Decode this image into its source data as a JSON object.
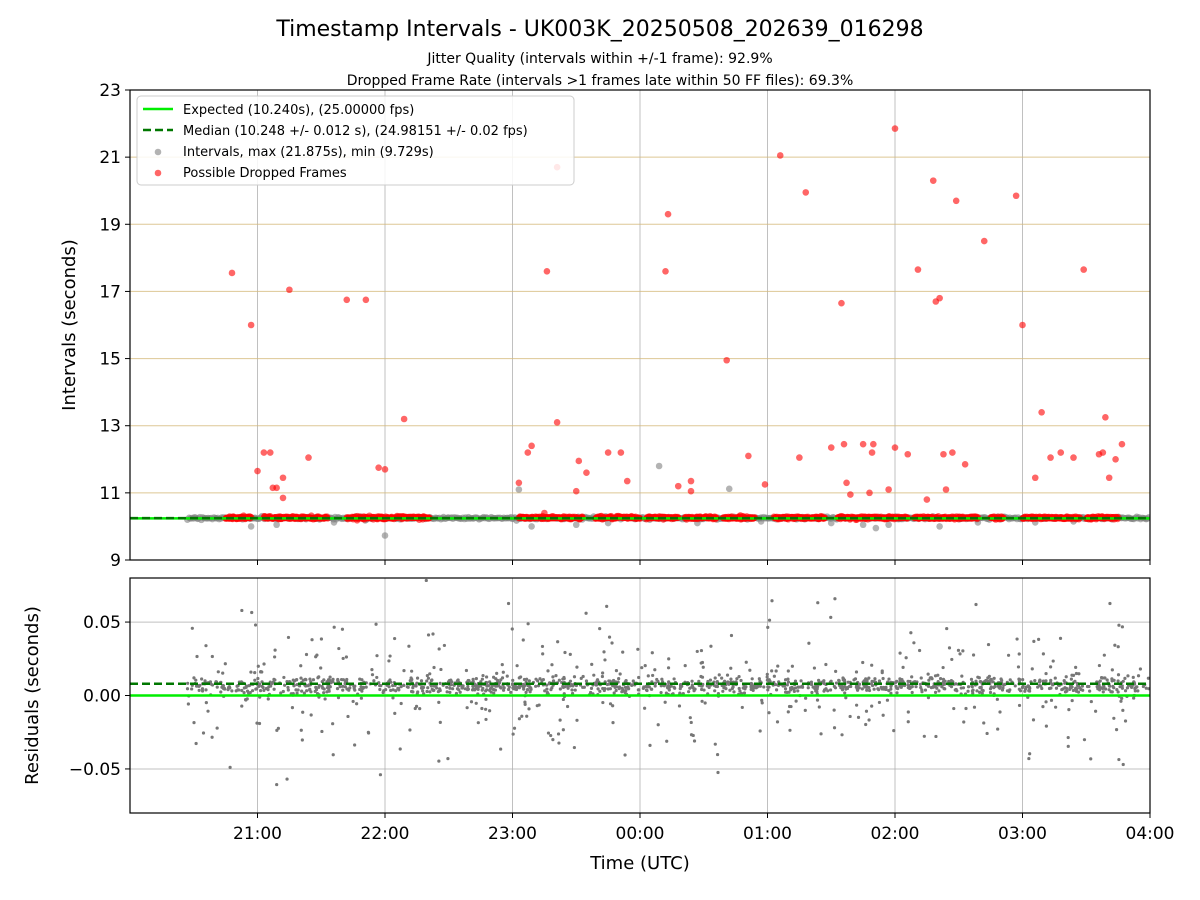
{
  "figure": {
    "title": "Timestamp Intervals - UK003K_20250508_202639_016298",
    "subtitle_1": "Jitter Quality (intervals within +/-1 frame): 92.9%",
    "subtitle_2": "Dropped Frame Rate (intervals >1 frames late within 50 FF files): 69.3%"
  },
  "chart_data": [
    {
      "type": "scatter",
      "panel": "intervals",
      "ylabel": "Intervals (seconds)",
      "xlabel": "",
      "x_unit": "hours since 20:00 UTC on the plot's time axis",
      "xlim": [
        20.0,
        28.0
      ],
      "ylim": [
        9,
        23
      ],
      "yticks": [
        9,
        11,
        13,
        15,
        17,
        19,
        21,
        23
      ],
      "ytick_labels": [
        "9",
        "11",
        "13",
        "15",
        "17",
        "19",
        "21",
        "23"
      ],
      "xticks": [
        21,
        22,
        23,
        24,
        25,
        26,
        27,
        28
      ],
      "xtick_labels": [
        "21:00",
        "22:00",
        "23:00",
        "00:00",
        "01:00",
        "02:00",
        "03:00",
        "04:00"
      ],
      "grid": "vertical grey at ticks, horizontal goldenrod at odd integers",
      "legend_position": "top-left",
      "lines": [
        {
          "name": "Expected (10.240s), (25.00000 fps)",
          "y": 10.24,
          "color": "#00ee00",
          "style": "solid"
        },
        {
          "name": "Median (10.248 +/- 0.012 s), (24.98151 +/- 0.02 fps)",
          "y": 10.248,
          "color": "#007700",
          "style": "dashed"
        }
      ],
      "series": [
        {
          "name": "Intervals, max (21.875s), min (9.729s)",
          "color": "#808080",
          "band": {
            "x_start": 20.45,
            "x_end": 28.0,
            "y": 10.25
          },
          "points": [
            [
              20.8,
              10.28
            ],
            [
              20.95,
              10.0
            ],
            [
              21.15,
              10.05
            ],
            [
              21.6,
              10.12
            ],
            [
              22.0,
              9.73
            ],
            [
              23.05,
              11.1
            ],
            [
              23.15,
              10.0
            ],
            [
              23.5,
              10.05
            ],
            [
              23.75,
              10.1
            ],
            [
              24.15,
              11.8
            ],
            [
              24.45,
              10.1
            ],
            [
              24.7,
              11.12
            ],
            [
              24.95,
              10.15
            ],
            [
              25.5,
              10.1
            ],
            [
              25.75,
              10.05
            ],
            [
              25.85,
              9.95
            ],
            [
              25.95,
              10.05
            ],
            [
              26.35,
              10.0
            ],
            [
              26.65,
              10.12
            ],
            [
              27.1,
              10.12
            ],
            [
              27.4,
              10.15
            ]
          ]
        },
        {
          "name": "Possible Dropped Frames",
          "color": "#ff0000",
          "segments": [
            [
              20.75,
              20.95
            ],
            [
              21.05,
              21.55
            ],
            [
              21.7,
              22.35
            ],
            [
              23.05,
              23.55
            ],
            [
              23.65,
              24.0
            ],
            [
              24.05,
              24.3
            ],
            [
              24.35,
              24.6
            ],
            [
              24.65,
              24.9
            ],
            [
              25.05,
              25.45
            ],
            [
              25.55,
              26.1
            ],
            [
              26.15,
              26.65
            ],
            [
              26.75,
              26.85
            ],
            [
              27.0,
              27.45
            ],
            [
              27.5,
              27.75
            ]
          ],
          "points": [
            [
              20.8,
              17.55
            ],
            [
              20.95,
              16.0
            ],
            [
              21.0,
              11.65
            ],
            [
              21.05,
              12.2
            ],
            [
              21.1,
              12.2
            ],
            [
              21.12,
              11.15
            ],
            [
              21.15,
              11.15
            ],
            [
              21.2,
              11.45
            ],
            [
              21.2,
              10.85
            ],
            [
              21.25,
              17.05
            ],
            [
              21.4,
              12.05
            ],
            [
              21.7,
              16.75
            ],
            [
              21.85,
              16.75
            ],
            [
              21.95,
              11.75
            ],
            [
              22.0,
              11.7
            ],
            [
              22.15,
              13.2
            ],
            [
              23.05,
              11.3
            ],
            [
              23.12,
              12.2
            ],
            [
              23.15,
              12.4
            ],
            [
              23.25,
              10.4
            ],
            [
              23.27,
              17.6
            ],
            [
              23.35,
              13.1
            ],
            [
              23.5,
              11.05
            ],
            [
              23.52,
              11.95
            ],
            [
              23.58,
              11.6
            ],
            [
              23.35,
              20.7
            ],
            [
              23.75,
              12.2
            ],
            [
              23.85,
              12.2
            ],
            [
              23.9,
              11.35
            ],
            [
              24.2,
              17.6
            ],
            [
              24.22,
              19.3
            ],
            [
              24.3,
              11.2
            ],
            [
              24.4,
              11.35
            ],
            [
              24.4,
              11.05
            ],
            [
              24.68,
              14.95
            ],
            [
              24.85,
              12.1
            ],
            [
              24.98,
              11.25
            ],
            [
              25.1,
              21.05
            ],
            [
              25.25,
              12.05
            ],
            [
              25.3,
              19.95
            ],
            [
              25.5,
              12.35
            ],
            [
              25.58,
              16.65
            ],
            [
              25.6,
              12.45
            ],
            [
              25.62,
              11.3
            ],
            [
              25.65,
              10.95
            ],
            [
              25.75,
              12.45
            ],
            [
              25.8,
              11.0
            ],
            [
              25.82,
              12.2
            ],
            [
              25.83,
              12.45
            ],
            [
              25.95,
              11.1
            ],
            [
              26.0,
              21.85
            ],
            [
              26.0,
              12.35
            ],
            [
              26.1,
              12.15
            ],
            [
              26.18,
              17.65
            ],
            [
              26.25,
              10.8
            ],
            [
              26.3,
              20.3
            ],
            [
              26.32,
              16.7
            ],
            [
              26.35,
              16.8
            ],
            [
              26.38,
              12.15
            ],
            [
              26.4,
              11.1
            ],
            [
              26.45,
              12.2
            ],
            [
              26.48,
              19.7
            ],
            [
              26.55,
              11.85
            ],
            [
              26.7,
              18.5
            ],
            [
              26.95,
              19.85
            ],
            [
              27.0,
              16.0
            ],
            [
              27.1,
              11.45
            ],
            [
              27.15,
              13.4
            ],
            [
              27.22,
              12.05
            ],
            [
              27.3,
              12.2
            ],
            [
              27.4,
              12.05
            ],
            [
              27.48,
              17.65
            ],
            [
              27.6,
              12.15
            ],
            [
              27.63,
              12.2
            ],
            [
              27.65,
              13.25
            ],
            [
              27.68,
              11.45
            ],
            [
              27.73,
              12.0
            ],
            [
              27.78,
              12.45
            ]
          ]
        }
      ]
    },
    {
      "type": "scatter",
      "panel": "residuals",
      "ylabel": "Residuals (seconds)",
      "xlabel": "Time (UTC)",
      "xlim": [
        20.0,
        28.0
      ],
      "ylim": [
        -0.08,
        0.08
      ],
      "yticks": [
        -0.05,
        0.0,
        0.05
      ],
      "ytick_labels": [
        "−0.05",
        "0.00",
        "0.05"
      ],
      "xticks": [
        21,
        22,
        23,
        24,
        25,
        26,
        27,
        28
      ],
      "xtick_labels": [
        "21:00",
        "22:00",
        "23:00",
        "00:00",
        "01:00",
        "02:00",
        "03:00",
        "04:00"
      ],
      "grid": "grey both axes",
      "lines": [
        {
          "name": "Expected",
          "y": 0.0,
          "color": "#00ee00",
          "style": "solid"
        },
        {
          "name": "Median",
          "y": 0.008,
          "color": "#007700",
          "style": "dashed"
        }
      ],
      "series": [
        {
          "name": "Residuals",
          "color": "#777777",
          "center": 0.007,
          "core_spread": 0.003,
          "outlier_spread": 0.04,
          "count": 1600,
          "x_range": [
            20.45,
            28.0
          ]
        }
      ]
    }
  ]
}
